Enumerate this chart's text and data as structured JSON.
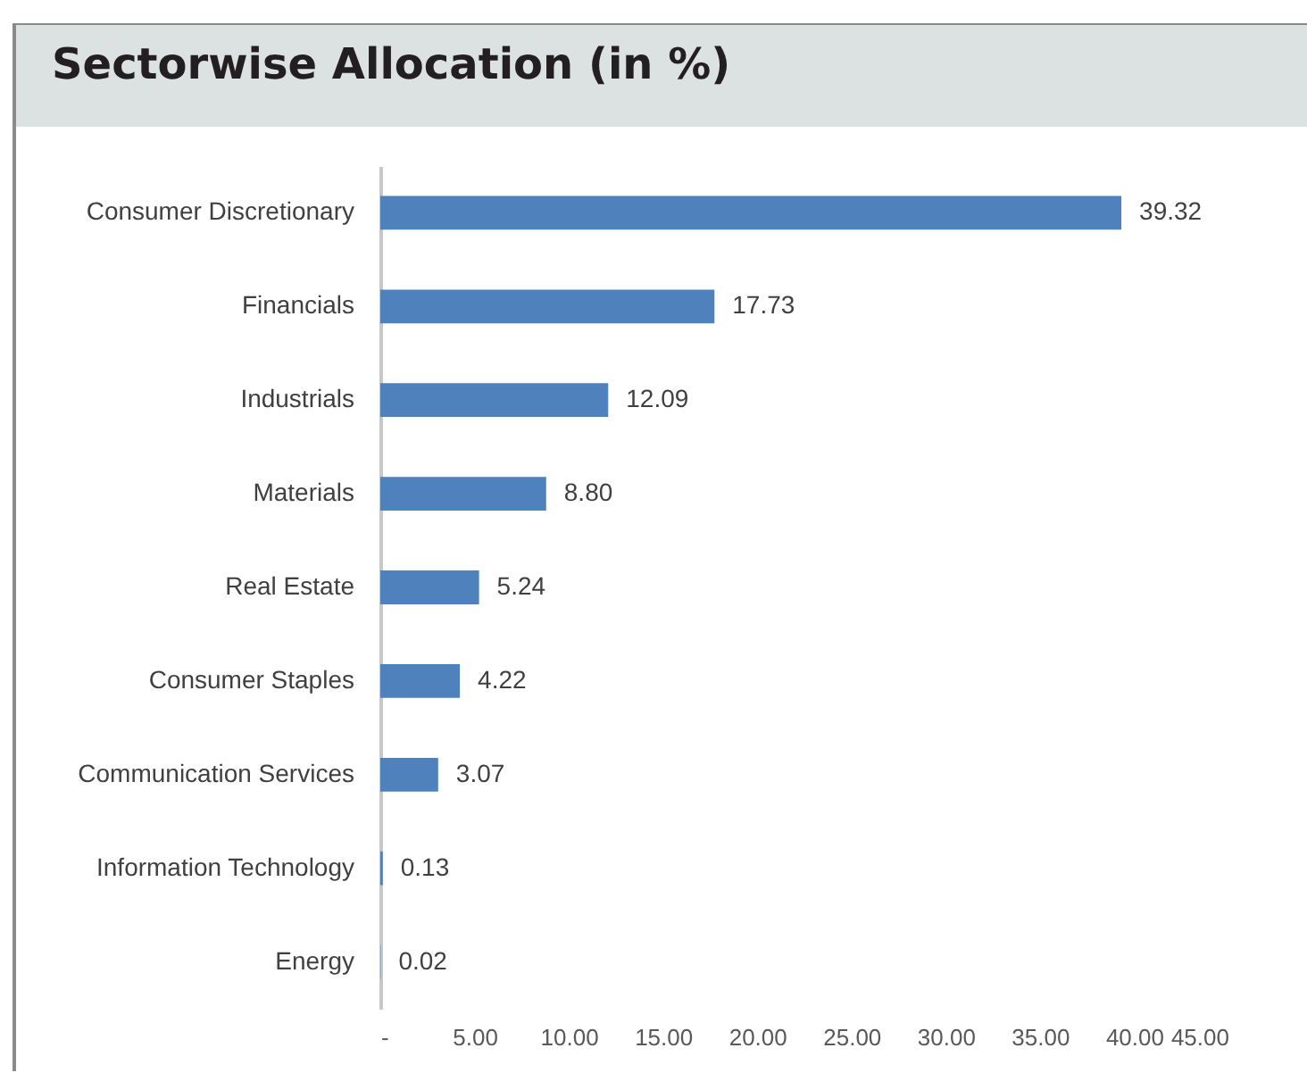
{
  "chart_data": {
    "type": "bar",
    "orientation": "horizontal",
    "title": "Sectorwise Allocation (in %)",
    "categories": [
      "Consumer Discretionary",
      "Financials",
      "Industrials",
      "Materials",
      "Real Estate",
      "Consumer Staples",
      "Communication Services",
      "Information Technology",
      "Energy"
    ],
    "values": [
      39.32,
      17.73,
      12.09,
      8.8,
      5.24,
      4.22,
      3.07,
      0.13,
      0.02
    ],
    "value_labels": [
      "39.32",
      "17.73",
      "12.09",
      "8.80",
      "5.24",
      "4.22",
      "3.07",
      "0.13",
      "0.02"
    ],
    "color": "#4f81bd",
    "xlim": [
      0,
      45
    ],
    "xticks": [
      {
        "value": 0,
        "label": "-"
      },
      {
        "value": 5,
        "label": "5.00"
      },
      {
        "value": 10,
        "label": "10.00"
      },
      {
        "value": 15,
        "label": "15.00"
      },
      {
        "value": 20,
        "label": "20.00"
      },
      {
        "value": 25,
        "label": "25.00"
      },
      {
        "value": 30,
        "label": "30.00"
      },
      {
        "value": 35,
        "label": "35.00"
      },
      {
        "value": 40,
        "label": "40.00"
      },
      {
        "value": 45,
        "label": "45.00"
      }
    ],
    "grid": false
  }
}
